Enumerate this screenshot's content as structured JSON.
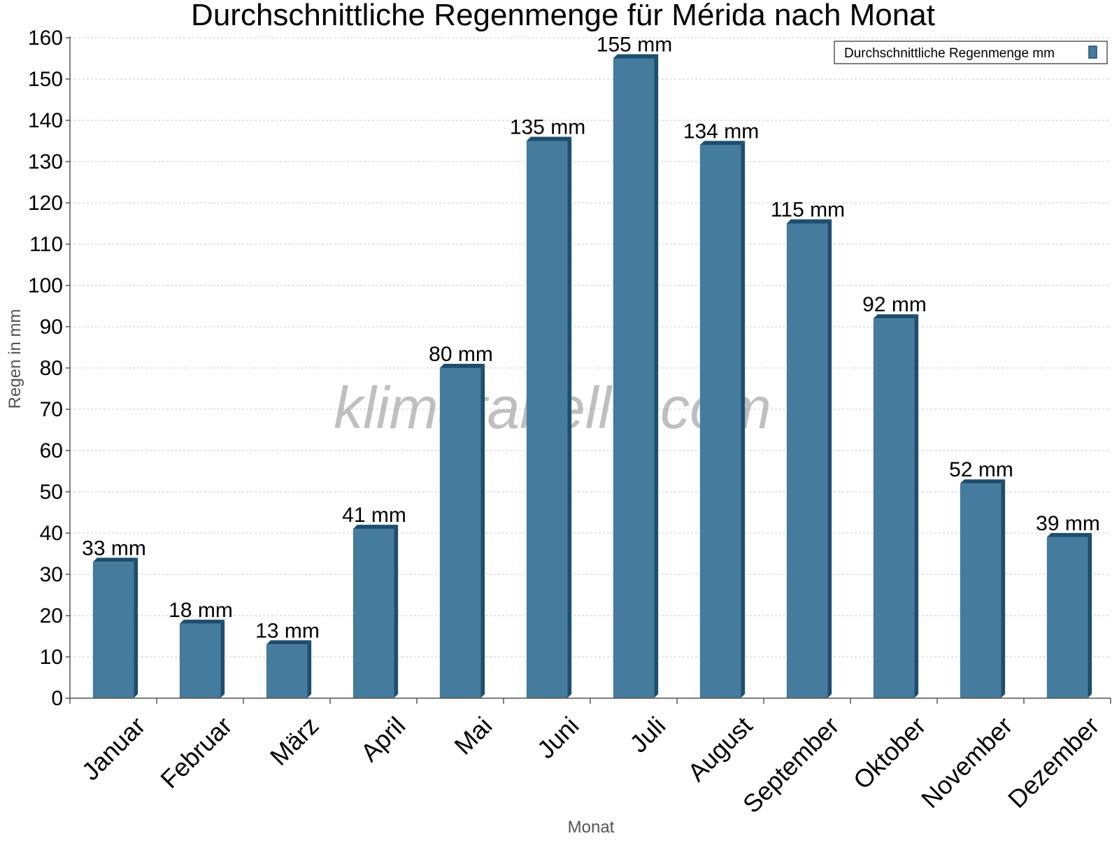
{
  "chart_data": {
    "type": "bar",
    "title": "Durchschnittliche Regenmenge für Mérida nach Monat",
    "xlabel": "Monat",
    "ylabel": "Regen in mm",
    "ylim": [
      0,
      160
    ],
    "yticks": [
      0,
      10,
      20,
      30,
      40,
      50,
      60,
      70,
      80,
      90,
      100,
      110,
      120,
      130,
      140,
      150,
      160
    ],
    "grid": true,
    "legend_position": "top-right",
    "categories": [
      "Januar",
      "Februar",
      "März",
      "April",
      "Mai",
      "Juni",
      "Juli",
      "August",
      "September",
      "Oktober",
      "November",
      "Dezember"
    ],
    "series": [
      {
        "name": "Durchschnittliche Regenmenge mm",
        "values": [
          33,
          18,
          13,
          41,
          80,
          135,
          155,
          134,
          115,
          92,
          52,
          39
        ],
        "labels": [
          "33 mm",
          "18 mm",
          "13 mm",
          "41 mm",
          "80 mm",
          "135 mm",
          "155 mm",
          "134 mm",
          "115 mm",
          "92 mm",
          "52 mm",
          "39 mm"
        ],
        "color": "#457b9d",
        "shade_color": "#1d4e6e"
      }
    ],
    "watermark": "klimatabelle.com"
  }
}
